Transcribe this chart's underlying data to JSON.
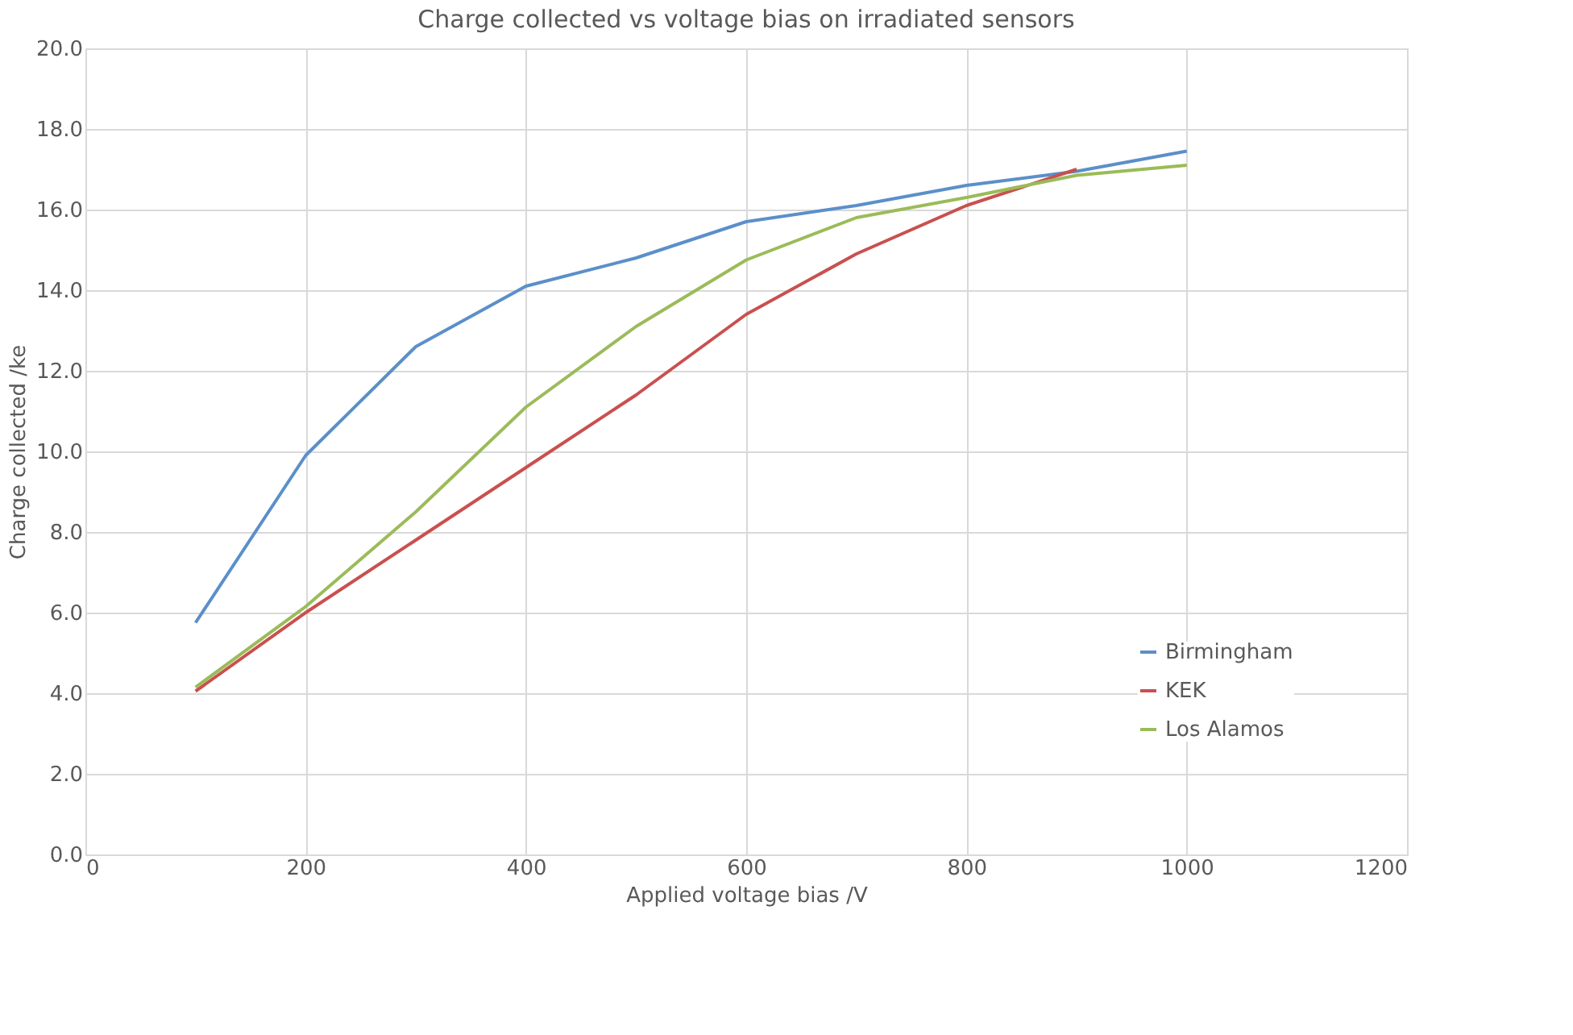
{
  "chart_data": {
    "type": "line",
    "title": "Charge collected vs voltage bias on irradiated sensors",
    "xlabel": "Applied voltage bias /V",
    "ylabel": "Charge collected /ke",
    "x": [
      100,
      200,
      300,
      400,
      500,
      600,
      700,
      800,
      900,
      1000
    ],
    "series": [
      {
        "name": "Birmingham",
        "color": "#5b8fc9",
        "values": [
          5.75,
          9.9,
          12.6,
          14.1,
          14.8,
          15.7,
          16.1,
          16.6,
          16.95,
          17.45
        ]
      },
      {
        "name": "KEK",
        "color": "#c9504f",
        "values": [
          4.05,
          6.0,
          7.8,
          9.6,
          11.4,
          13.4,
          14.9,
          16.1,
          17.0,
          null
        ]
      },
      {
        "name": "Los Alamos",
        "color": "#9bbb59",
        "values": [
          4.15,
          6.15,
          8.5,
          11.1,
          13.1,
          14.75,
          15.8,
          16.3,
          16.85,
          17.1
        ]
      }
    ],
    "xlim": [
      0,
      1200
    ],
    "xticks": [
      0,
      200,
      400,
      600,
      800,
      1000,
      1200
    ],
    "ylim": [
      0,
      20
    ],
    "yticks": [
      {
        "value": 0,
        "label": "0.0"
      },
      {
        "value": 2,
        "label": "2.0"
      },
      {
        "value": 4,
        "label": "4.0"
      },
      {
        "value": 6,
        "label": "6.0"
      },
      {
        "value": 8,
        "label": "8.0"
      },
      {
        "value": 10,
        "label": "10.0"
      },
      {
        "value": 12,
        "label": "12.0"
      },
      {
        "value": 14,
        "label": "14.0"
      },
      {
        "value": 16,
        "label": "16.0"
      },
      {
        "value": 18,
        "label": "18.0"
      },
      {
        "value": 20,
        "label": "20.0"
      }
    ],
    "grid": true,
    "legend": "bottom right",
    "marker": "none",
    "line_style": "solid"
  }
}
